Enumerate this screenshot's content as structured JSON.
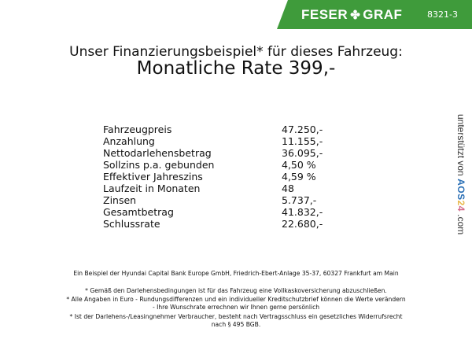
{
  "header": {
    "brand_left": "FESER",
    "brand_right": "GRAF",
    "logo_icon": "clover-icon",
    "code": "8321-3",
    "banner_color": "#3f9b3b"
  },
  "headline": {
    "line1": "Unser Finanzierungsbeispiel* für dieses Fahrzeug:",
    "line2": "Monatliche Rate 399,-"
  },
  "finance": [
    {
      "label": "Fahrzeugpreis",
      "value": "47.250,-"
    },
    {
      "label": "Anzahlung",
      "value": "11.155,-"
    },
    {
      "label": "Nettodarlehensbetrag",
      "value": "36.095,-"
    },
    {
      "label": "Sollzins p.a. gebunden",
      "value": "4,50 %"
    },
    {
      "label": "Effektiver Jahreszins",
      "value": "4,59 %"
    },
    {
      "label": "Laufzeit in Monaten",
      "value": "48"
    },
    {
      "label": "Zinsen",
      "value": "5.737,-"
    },
    {
      "label": "Gesamtbetrag",
      "value": "41.832,-"
    },
    {
      "label": "Schlussrate",
      "value": "22.680,-"
    }
  ],
  "sidebar": {
    "prefix": "unterstützt von",
    "logo": "AOS24",
    "suffix": ".com"
  },
  "footer": {
    "bank": "Ein Beispiel der Hyundai Capital Bank Europe GmbH, Friedrich-Ebert-Anlage 35-37, 60327 Frankfurt am Main",
    "note1": "* Gemäß den Darlehensbedingungen ist für das Fahrzeug eine Vollkaskoversicherung abzuschließen.",
    "note2a": "* Alle Angaben in Euro - Rundungsdifferenzen und ein individueller Kreditschutzbrief können die Werte verändern",
    "note2b": "- Ihre Wunschrate errechnen wir Ihnen gerne persönlich",
    "note3a": "* Ist der Darlehens-/Leasingnehmer Verbraucher, besteht nach Vertragsschluss ein gesetzliches Widerrufsrecht",
    "note3b": "nach § 495 BGB."
  }
}
